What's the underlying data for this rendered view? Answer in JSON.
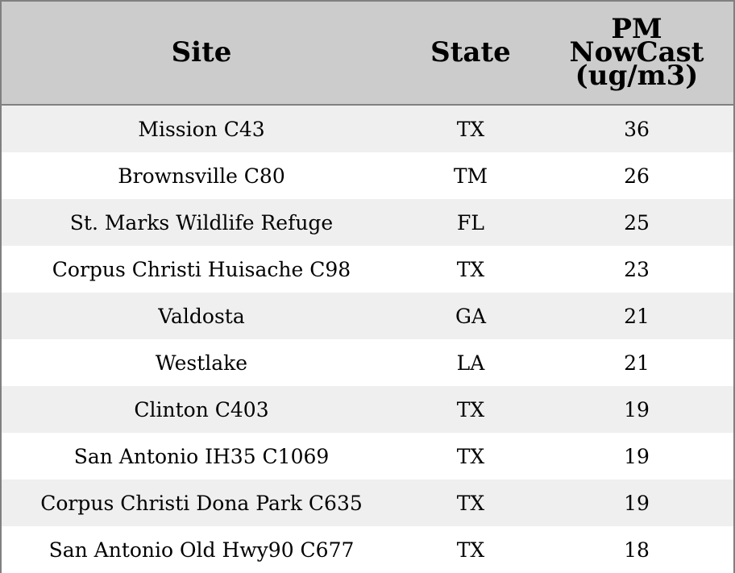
{
  "chart_data": {
    "type": "table",
    "columns": [
      "Site",
      "State",
      "PM NowCast (ug/m3)"
    ],
    "column_header_lines": [
      [
        "Site"
      ],
      [
        "State"
      ],
      [
        "PM",
        "NowCast",
        "(ug/m3)"
      ]
    ],
    "rows": [
      [
        "Mission C43",
        "TX",
        "36"
      ],
      [
        "Brownsville C80",
        "TM",
        "26"
      ],
      [
        "St. Marks Wildlife Refuge",
        "FL",
        "25"
      ],
      [
        "Corpus Christi Huisache C98",
        "TX",
        "23"
      ],
      [
        "Valdosta",
        "GA",
        "21"
      ],
      [
        "Westlake",
        "LA",
        "21"
      ],
      [
        "Clinton C403",
        "TX",
        "19"
      ],
      [
        "San Antonio IH35 C1069",
        "TX",
        "19"
      ],
      [
        "Corpus Christi Dona Park C635",
        "TX",
        "19"
      ],
      [
        "San Antonio Old Hwy90 C677",
        "TX",
        "18"
      ]
    ],
    "colors": {
      "header_background": "#cccccc",
      "stripe_background": "#efefef",
      "row_background": "#ffffff",
      "border": "#808080"
    }
  }
}
